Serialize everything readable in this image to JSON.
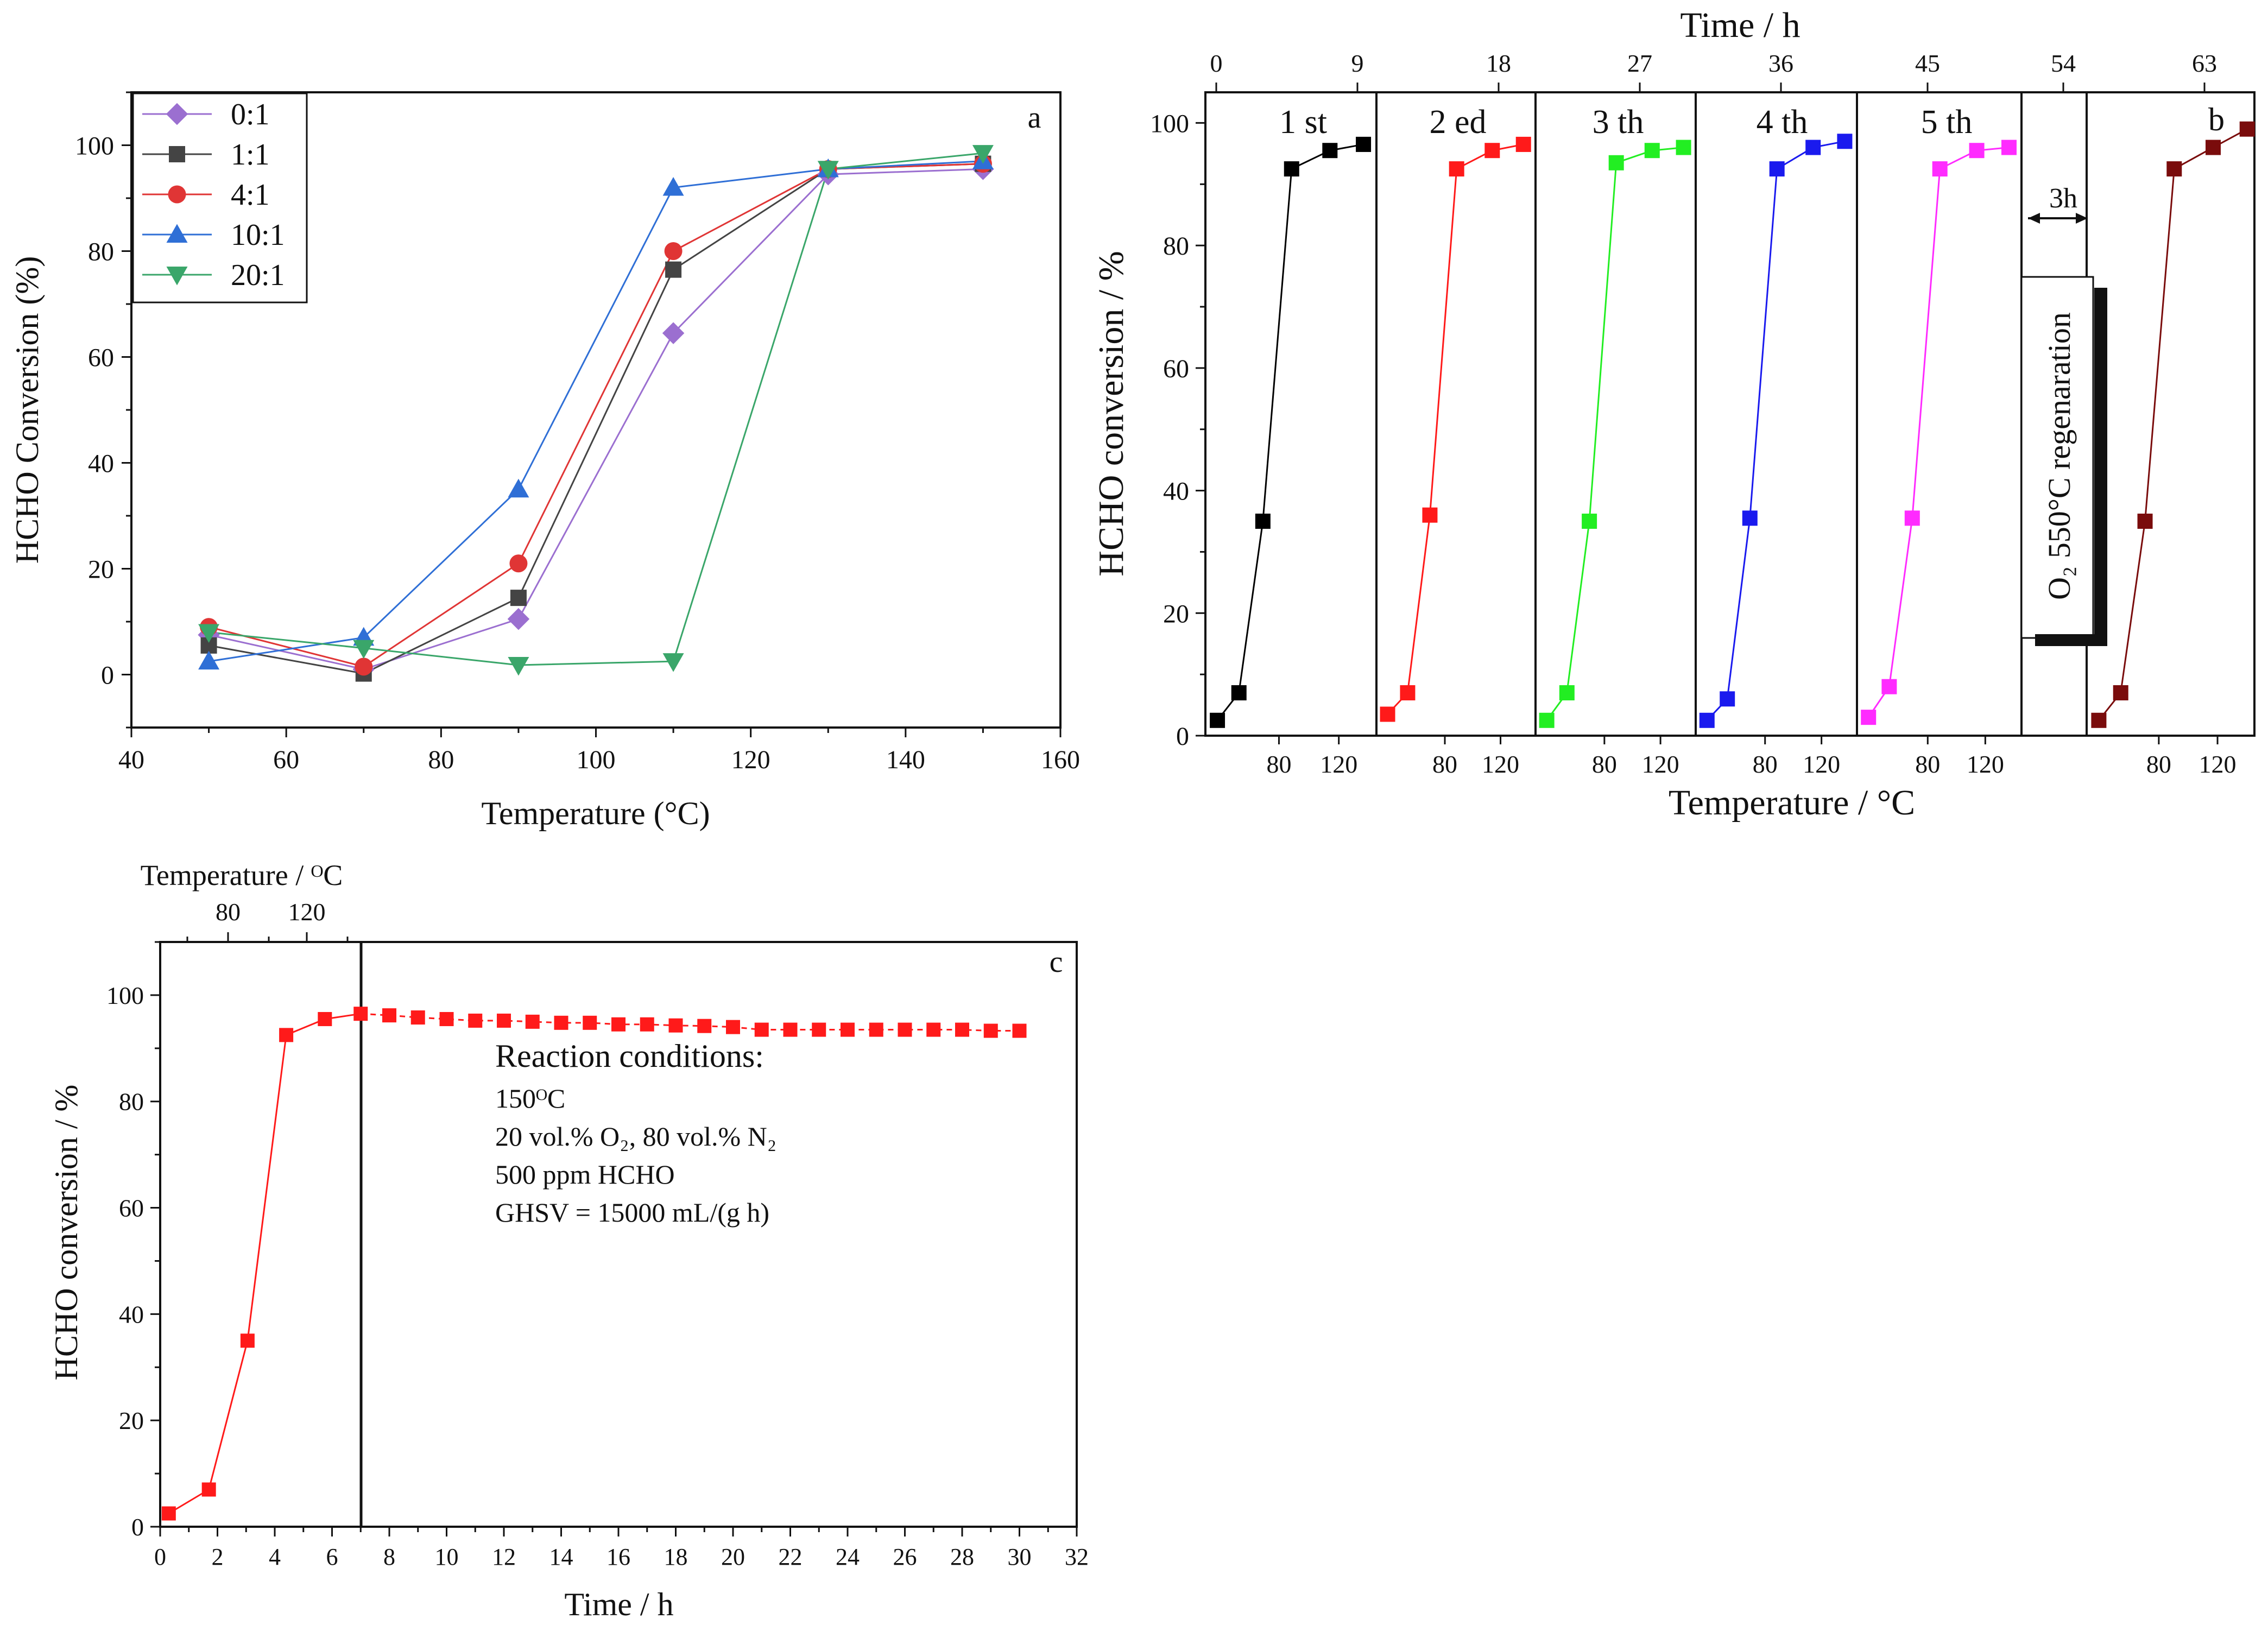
{
  "chart_data": [
    {
      "panel": "a",
      "type": "line",
      "xlabel": "Temperature (°C)",
      "ylabel": "HCHO Conversion (%)",
      "xlim": [
        40,
        160
      ],
      "ylim": [
        -10,
        110
      ],
      "xticks": [
        "40",
        "60",
        "80",
        "100",
        "120",
        "140",
        "160"
      ],
      "yticks": [
        "0",
        "20",
        "40",
        "60",
        "80",
        "100"
      ],
      "legend_position": "top-left",
      "x": [
        50,
        70,
        90,
        110,
        130,
        150
      ],
      "series": [
        {
          "name": "0:1",
          "values": [
            7.5,
            1.0,
            10.5,
            64.5,
            94.5,
            95.5
          ],
          "color": "#9b6fd0",
          "marker": "diamond"
        },
        {
          "name": "1:1",
          "values": [
            5.5,
            0.2,
            14.5,
            76.5,
            95.5,
            96.5
          ],
          "color": "#444444",
          "marker": "square"
        },
        {
          "name": "4:1",
          "values": [
            9.0,
            1.5,
            21.0,
            80.0,
            95.5,
            96.5
          ],
          "color": "#e03535",
          "marker": "circle"
        },
        {
          "name": "10:1",
          "values": [
            2.5,
            7.0,
            35.0,
            92.0,
            95.5,
            97.0
          ],
          "color": "#2f6fd6",
          "marker": "triangle-up"
        },
        {
          "name": "20:1",
          "values": [
            8.0,
            5.0,
            1.8,
            2.5,
            95.5,
            98.5
          ],
          "color": "#3aa66a",
          "marker": "triangle-down"
        }
      ]
    },
    {
      "panel": "b",
      "type": "line",
      "ylabel": "HCHO conversion / %",
      "xlabel_bottom": "Temperature / °C",
      "xlabel_top": "Time / h",
      "ylim": [
        0,
        105
      ],
      "yticks": [
        "0",
        "20",
        "40",
        "60",
        "80",
        "100"
      ],
      "top_ticks": [
        "0",
        "9",
        "18",
        "27",
        "36",
        "45",
        "54",
        "63"
      ],
      "bottom_ticks": [
        "80",
        "120"
      ],
      "cycle_labels": [
        "1 st",
        "2 ed",
        "3 th",
        "4 th",
        "5 th"
      ],
      "regeneration": {
        "gap_label": "3h",
        "text": "O₂ 550°C regenaration"
      },
      "series": [
        {
          "name": "1 st",
          "color": "#000000",
          "values": [
            2.5,
            7.0,
            35.0,
            92.5,
            95.5,
            96.5
          ]
        },
        {
          "name": "2 ed",
          "color": "#ff1a1a",
          "values": [
            3.5,
            7.0,
            36.0,
            92.5,
            95.5,
            96.5
          ]
        },
        {
          "name": "3 th",
          "color": "#22ee22",
          "values": [
            2.5,
            7.0,
            35.0,
            93.5,
            95.5,
            96.0
          ]
        },
        {
          "name": "4 th",
          "color": "#1a1aee",
          "values": [
            2.5,
            6.0,
            35.5,
            92.5,
            96.0,
            97.0
          ]
        },
        {
          "name": "5 th",
          "color": "#ff2bff",
          "values": [
            3.0,
            8.0,
            35.5,
            92.5,
            95.5,
            96.0
          ]
        },
        {
          "color": "#7a0c0c",
          "values": [
            2.5,
            7.0,
            35.0,
            92.5,
            96.0,
            99.0
          ]
        }
      ]
    },
    {
      "panel": "c",
      "type": "line",
      "xlabel": "Time / h",
      "ylabel": "HCHO conversion / %",
      "xlabel_top": "Temperature / ᴼC",
      "top_ticks": [
        "80",
        "120"
      ],
      "xlim": [
        0,
        32
      ],
      "ylim": [
        0,
        110
      ],
      "xticks": [
        "0",
        "2",
        "4",
        "6",
        "8",
        "10",
        "12",
        "14",
        "16",
        "18",
        "20",
        "22",
        "24",
        "26",
        "28",
        "30",
        "32"
      ],
      "yticks": [
        "0",
        "20",
        "40",
        "60",
        "80",
        "100"
      ],
      "annotation": [
        "Reaction conditions:",
        "150ᴼC",
        "20 vol.% O₂, 80 vol.% N₂",
        "500 ppm HCHO",
        "GHSV = 15000 mL/(g h)"
      ],
      "x": [
        0.3,
        1.7,
        3.05,
        4.4,
        5.75,
        7.0,
        8.0,
        9.0,
        10.0,
        11.0,
        12.0,
        13.0,
        14.0,
        15.0,
        16.0,
        17.0,
        18.0,
        19.0,
        20.0,
        21.0,
        22.0,
        23.0,
        24.0,
        25.0,
        26.0,
        27.0,
        28.0,
        29.0,
        30.0
      ],
      "series": [
        {
          "color": "#ff1a1a",
          "values": [
            2.5,
            7.0,
            35.0,
            92.5,
            95.5,
            96.5,
            96.2,
            95.8,
            95.5,
            95.2,
            95.2,
            95.0,
            94.8,
            94.8,
            94.5,
            94.5,
            94.3,
            94.2,
            94.0,
            93.5,
            93.5,
            93.5,
            93.5,
            93.5,
            93.5,
            93.5,
            93.5,
            93.3,
            93.3
          ]
        }
      ]
    }
  ]
}
